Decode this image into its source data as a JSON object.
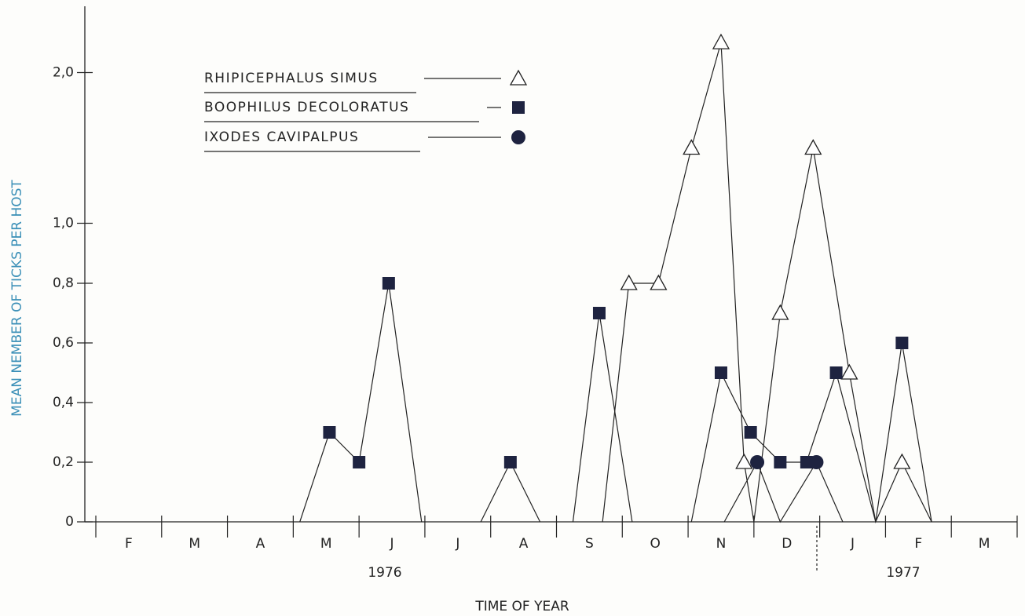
{
  "chart_data": {
    "type": "line",
    "y_label": "MEAN NEMBER OF TICKS PER HOST",
    "x_label": "TIME OF YEAR",
    "categories": [
      "F",
      "M",
      "A",
      "M",
      "J",
      "J",
      "A",
      "S",
      "O",
      "N",
      "D",
      "J",
      "F",
      "M"
    ],
    "annotations": [
      "1976",
      "1977"
    ],
    "xlim": [
      0,
      14
    ],
    "ylim": [
      0,
      2.4
    ],
    "yticks": [
      0,
      {
        "value": 0.2,
        "label": "0,2"
      },
      {
        "value": 0.4,
        "label": "0,4"
      },
      {
        "value": 0.6,
        "label": "0,6"
      },
      {
        "value": 0.8,
        "label": "0,8"
      },
      {
        "value": 1.0,
        "label": "1,0"
      },
      {
        "value": 2.0,
        "label": "2,0"
      }
    ],
    "series": [
      {
        "name": "RHIPICEPHALUS SIMUS",
        "color": "#222222",
        "marker": "triangle",
        "x": [
          7.7,
          8.1,
          8.55,
          9.05,
          9.5,
          9.85,
          10.0,
          10.4,
          10.9,
          11.45,
          11.85,
          12.25,
          12.7
        ],
        "values": [
          0,
          0.8,
          0.8,
          1.5,
          2.2,
          0.2,
          0,
          0.7,
          1.5,
          0.5,
          0,
          0.2,
          0
        ]
      },
      {
        "name": "BOOPHILUS DECOLORATUS",
        "color": "#1e2340",
        "marker": "square",
        "x": [
          3.1,
          3.55,
          4.0,
          4.45,
          4.95,
          null,
          5.85,
          6.3,
          6.75,
          null,
          7.25,
          7.65,
          8.15,
          null,
          9.05,
          9.5,
          9.95,
          10.4,
          10.8,
          11.25,
          11.85,
          12.25,
          12.7
        ],
        "values": [
          0,
          0.3,
          0.2,
          0.8,
          0,
          null,
          0,
          0.2,
          0,
          null,
          0,
          0.7,
          0,
          null,
          0,
          0.5,
          0.3,
          0.2,
          0.2,
          0.5,
          0,
          0.6,
          0
        ]
      },
      {
        "name": "IXODES CAVIPALPUS",
        "color": "#1e2340",
        "marker": "circle",
        "x": [
          9.55,
          10.05,
          10.4,
          10.95,
          11.35
        ],
        "values": [
          0,
          0.2,
          0,
          0.2,
          0
        ]
      }
    ]
  }
}
